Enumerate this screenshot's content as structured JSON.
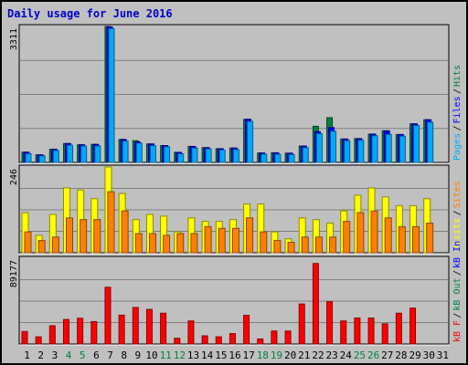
{
  "title": "Daily usage for June 2016",
  "colors": {
    "background": "#c0c0c0",
    "title": "#0000cc",
    "pages": "#00aaff",
    "files": "#0000ff",
    "hits": "#008040",
    "sites": "#ff8000",
    "visits": "#ffff00",
    "kb_in": "#0000ff",
    "kb_out": "#008040",
    "kb_f": "#ff0000",
    "weekend_day": "#008040",
    "weekday": "#000000"
  },
  "chart_data": {
    "type": "bar",
    "title": "Daily usage for June 2016",
    "categories": [
      "1",
      "2",
      "3",
      "4",
      "5",
      "6",
      "7",
      "8",
      "9",
      "10",
      "11",
      "12",
      "13",
      "14",
      "15",
      "16",
      "17",
      "18",
      "19",
      "20",
      "21",
      "22",
      "23",
      "24",
      "25",
      "26",
      "27",
      "28",
      "29",
      "30",
      "31"
    ],
    "weekend_days": [
      4,
      5,
      11,
      12,
      18,
      19,
      25,
      26
    ],
    "panels": [
      {
        "name": "hits-files-pages",
        "ymax_label": "3311",
        "ylim": [
          0,
          3311
        ],
        "legend": [
          {
            "label": "Pages",
            "color": "#00aaff"
          },
          {
            "label": "Files",
            "color": "#0000ff"
          },
          {
            "label": "Hits",
            "color": "#008040"
          }
        ],
        "series": [
          {
            "name": "Hits",
            "values": [
              250,
              185,
              320,
              460,
              430,
              440,
              3311,
              560,
              530,
              450,
              410,
              245,
              390,
              360,
              335,
              350,
              1050,
              230,
              235,
              225,
              400,
              880,
              1090,
              570,
              580,
              690,
              770,
              680,
              940,
              1040,
              0
            ]
          },
          {
            "name": "Files",
            "values": [
              250,
              185,
              320,
              460,
              430,
              440,
              3300,
              560,
              500,
              450,
              410,
              245,
              390,
              360,
              335,
              350,
              1050,
              230,
              235,
              225,
              400,
              750,
              850,
              570,
              580,
              690,
              770,
              680,
              940,
              1040,
              0
            ]
          },
          {
            "name": "Pages",
            "values": [
              210,
              160,
              290,
              420,
              400,
              400,
              3260,
              520,
              470,
              410,
              380,
              210,
              350,
              330,
              300,
              315,
              1000,
              200,
              200,
              195,
              360,
              700,
              760,
              530,
              540,
              650,
              680,
              640,
              900,
              980,
              0
            ]
          }
        ]
      },
      {
        "name": "visits-sites",
        "ymax_label": "246",
        "ylim": [
          0,
          246
        ],
        "legend": [
          {
            "label": "Visits",
            "color": "#ffff00"
          },
          {
            "label": "Sites",
            "color": "#ff8000"
          }
        ],
        "series": [
          {
            "name": "Visits",
            "values": [
              115,
              50,
              110,
              186,
              180,
              155,
              246,
              170,
              95,
              110,
              105,
              60,
              100,
              90,
              90,
              95,
              140,
              140,
              60,
              40,
              100,
              95,
              85,
              120,
              165,
              186,
              160,
              135,
              135,
              155,
              0
            ]
          },
          {
            "name": "Sites",
            "values": [
              60,
              35,
              45,
              100,
              95,
              95,
              175,
              120,
              55,
              55,
              50,
              55,
              55,
              75,
              70,
              70,
              100,
              60,
              35,
              30,
              45,
              45,
              45,
              90,
              115,
              120,
              100,
              75,
              75,
              85,
              0
            ]
          }
        ]
      },
      {
        "name": "kbf-kbout-kbin",
        "ymax_label": "89177",
        "ylim": [
          0,
          89177
        ],
        "legend": [
          {
            "label": "kB F",
            "color": "#ff0000"
          },
          {
            "label": "kB Out",
            "color": "#008040"
          },
          {
            "label": "kB In",
            "color": "#0000ff"
          }
        ],
        "series": [
          {
            "name": "kB F",
            "values": [
              13000,
              7500,
              19000,
              25500,
              26800,
              23300,
              59000,
              30000,
              38000,
              36000,
              32000,
              6000,
              24000,
              8500,
              7500,
              10800,
              29800,
              5200,
              13500,
              13500,
              41600,
              83700,
              44000,
              24000,
              27000,
              27000,
              21000,
              32000,
              37300,
              0,
              0
            ]
          },
          {
            "name": "kB Out",
            "values": [
              0,
              0,
              0,
              0,
              0,
              0,
              0,
              0,
              0,
              0,
              0,
              0,
              0,
              0,
              0,
              0,
              0,
              0,
              0,
              0,
              0,
              0,
              0,
              0,
              0,
              0,
              0,
              0,
              0,
              0,
              0
            ]
          },
          {
            "name": "kB In",
            "values": [
              0,
              0,
              0,
              0,
              0,
              0,
              0,
              0,
              0,
              0,
              0,
              0,
              0,
              0,
              0,
              0,
              0,
              0,
              0,
              0,
              0,
              0,
              0,
              0,
              0,
              0,
              0,
              0,
              0,
              0,
              0
            ]
          }
        ]
      }
    ]
  }
}
